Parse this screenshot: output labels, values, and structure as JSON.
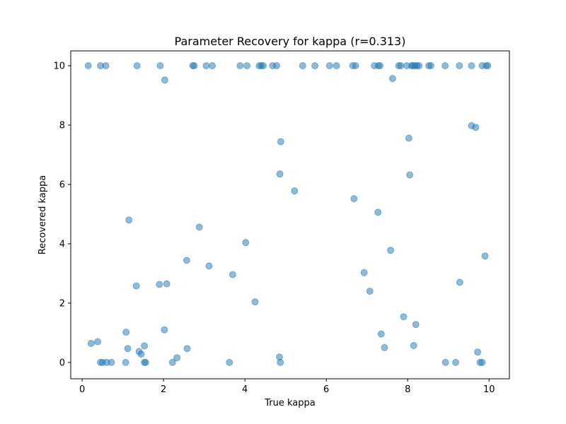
{
  "chart_data": {
    "type": "scatter",
    "title": "Parameter Recovery for kappa (r=0.313)",
    "xlabel": "True kappa",
    "ylabel": "Recovered kappa",
    "xlim": [
      -0.28,
      10.5
    ],
    "ylim": [
      -0.55,
      10.5
    ],
    "xticks": [
      0,
      2,
      4,
      6,
      8,
      10
    ],
    "yticks": [
      0,
      2,
      4,
      6,
      8,
      10
    ],
    "grid": false,
    "legend": false,
    "marker_color": "#1f77b4",
    "marker_alpha": 0.5,
    "points": [
      [
        0.15,
        10
      ],
      [
        0.45,
        10
      ],
      [
        0.58,
        10
      ],
      [
        1.35,
        10
      ],
      [
        1.92,
        10
      ],
      [
        2.72,
        10
      ],
      [
        2.75,
        10
      ],
      [
        3.05,
        10
      ],
      [
        3.2,
        10
      ],
      [
        3.88,
        10
      ],
      [
        4.05,
        10
      ],
      [
        4.35,
        10
      ],
      [
        4.4,
        10
      ],
      [
        4.45,
        10
      ],
      [
        4.68,
        10
      ],
      [
        4.78,
        10
      ],
      [
        5.42,
        10
      ],
      [
        5.72,
        10
      ],
      [
        6.08,
        10
      ],
      [
        6.25,
        10
      ],
      [
        6.65,
        10
      ],
      [
        6.72,
        10
      ],
      [
        7.18,
        10
      ],
      [
        7.28,
        10
      ],
      [
        7.32,
        10
      ],
      [
        7.78,
        10
      ],
      [
        7.83,
        10
      ],
      [
        7.98,
        10
      ],
      [
        8.1,
        10
      ],
      [
        8.13,
        10
      ],
      [
        8.18,
        10
      ],
      [
        8.23,
        10
      ],
      [
        8.28,
        10
      ],
      [
        8.52,
        10
      ],
      [
        8.57,
        10
      ],
      [
        8.92,
        10
      ],
      [
        9.27,
        10
      ],
      [
        9.57,
        10
      ],
      [
        9.83,
        10
      ],
      [
        9.93,
        10
      ],
      [
        9.97,
        10
      ],
      [
        2.03,
        9.52
      ],
      [
        7.63,
        9.57
      ],
      [
        9.57,
        7.98
      ],
      [
        9.67,
        7.92
      ],
      [
        8.03,
        7.56
      ],
      [
        4.88,
        7.44
      ],
      [
        4.86,
        6.35
      ],
      [
        8.05,
        6.32
      ],
      [
        5.22,
        5.78
      ],
      [
        6.68,
        5.52
      ],
      [
        7.27,
        5.06
      ],
      [
        1.15,
        4.8
      ],
      [
        2.88,
        4.56
      ],
      [
        4.02,
        4.04
      ],
      [
        7.58,
        3.78
      ],
      [
        9.9,
        3.59
      ],
      [
        2.57,
        3.44
      ],
      [
        3.12,
        3.25
      ],
      [
        3.7,
        2.96
      ],
      [
        6.93,
        3.03
      ],
      [
        9.28,
        2.7
      ],
      [
        1.33,
        2.58
      ],
      [
        1.9,
        2.63
      ],
      [
        2.08,
        2.65
      ],
      [
        7.07,
        2.4
      ],
      [
        4.25,
        2.04
      ],
      [
        7.9,
        1.54
      ],
      [
        8.2,
        1.28
      ],
      [
        2.02,
        1.1
      ],
      [
        1.08,
        1.02
      ],
      [
        7.35,
        0.96
      ],
      [
        0.22,
        0.64
      ],
      [
        0.38,
        0.7
      ],
      [
        1.12,
        0.47
      ],
      [
        1.53,
        0.56
      ],
      [
        2.58,
        0.47
      ],
      [
        1.4,
        0.37
      ],
      [
        1.45,
        0.28
      ],
      [
        7.43,
        0.5
      ],
      [
        8.15,
        0.57
      ],
      [
        9.72,
        0.35
      ],
      [
        2.33,
        0.16
      ],
      [
        4.85,
        0.18
      ],
      [
        0.45,
        0
      ],
      [
        0.5,
        0
      ],
      [
        0.6,
        0
      ],
      [
        0.72,
        0
      ],
      [
        1.07,
        0
      ],
      [
        1.53,
        0
      ],
      [
        1.56,
        0
      ],
      [
        2.22,
        0
      ],
      [
        3.62,
        0
      ],
      [
        4.87,
        0
      ],
      [
        8.93,
        0
      ],
      [
        9.18,
        0
      ],
      [
        9.78,
        0
      ],
      [
        9.83,
        0
      ]
    ]
  }
}
